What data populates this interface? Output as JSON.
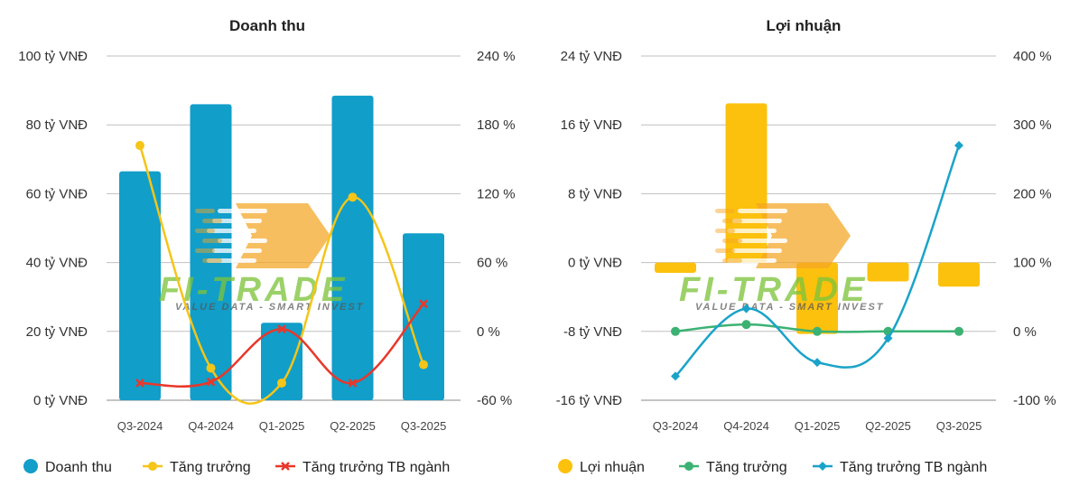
{
  "watermark": {
    "brand": "FI-TRADE",
    "tagline": "VALUE DATA - SMART INVEST",
    "brand_color": "#7dc43a",
    "arrow_color": "#f5a623"
  },
  "colors": {
    "revenue_bar": "#119ec9",
    "growth_left": "#f5c518",
    "industry_left": "#e8382a",
    "profit_bar": "#fcc10d",
    "growth_right": "#3bb273",
    "industry_right": "#1aa3c9",
    "grid": "#bfbfbf"
  },
  "chart_data": [
    {
      "type": "bar",
      "title": "Doanh thu",
      "categories": [
        "Q3-2024",
        "Q4-2024",
        "Q1-2025",
        "Q2-2025",
        "Q3-2025"
      ],
      "series": [
        {
          "name": "Doanh thu",
          "type": "bar",
          "axis": "left",
          "values": [
            66.5,
            86,
            22.5,
            88.5,
            48.5
          ]
        },
        {
          "name": "Tăng trưởng",
          "type": "line",
          "axis": "right",
          "values": [
            162,
            -32,
            -45,
            117,
            -29
          ]
        },
        {
          "name": "Tăng trưởng TB ngành",
          "type": "line",
          "axis": "right",
          "values": [
            -45,
            -44,
            2,
            -45,
            24
          ]
        }
      ],
      "left_axis": {
        "min": 0,
        "max": 100,
        "ticks": [
          0,
          20,
          40,
          60,
          80,
          100
        ],
        "tick_labels": [
          "0 tỷ VNĐ",
          "20 tỷ VNĐ",
          "40 tỷ VNĐ",
          "60 tỷ VNĐ",
          "80 tỷ VNĐ",
          "100 tỷ VNĐ"
        ]
      },
      "right_axis": {
        "min": -60,
        "max": 240,
        "ticks": [
          -60,
          0,
          60,
          120,
          180,
          240
        ],
        "tick_labels": [
          "-60 %",
          "0 %",
          "60 %",
          "120 %",
          "180 %",
          "240 %"
        ]
      },
      "grid": true,
      "legend_position": "bottom-left"
    },
    {
      "type": "bar",
      "title": "Lợi nhuận",
      "categories": [
        "Q3-2024",
        "Q4-2024",
        "Q1-2025",
        "Q2-2025",
        "Q3-2025"
      ],
      "series": [
        {
          "name": "Lợi nhuận",
          "type": "bar",
          "axis": "left",
          "values": [
            -1.2,
            18.5,
            -8.3,
            -2.2,
            -2.8
          ]
        },
        {
          "name": "Tăng trưởng",
          "type": "line",
          "axis": "right",
          "values": [
            0,
            10,
            0,
            0,
            0
          ]
        },
        {
          "name": "Tăng trưởng TB ngành",
          "type": "line",
          "axis": "right",
          "values": [
            -65,
            33,
            -45,
            -10,
            270
          ]
        }
      ],
      "left_axis": {
        "min": -16,
        "max": 24,
        "ticks": [
          -16,
          -8,
          0,
          8,
          16,
          24
        ],
        "tick_labels": [
          "-16 tỷ VNĐ",
          "-8 tỷ VNĐ",
          "0 tỷ VNĐ",
          "8 tỷ VNĐ",
          "16 tỷ VNĐ",
          "24 tỷ VNĐ"
        ]
      },
      "right_axis": {
        "min": -100,
        "max": 400,
        "ticks": [
          -100,
          0,
          100,
          200,
          300,
          400
        ],
        "tick_labels": [
          "-100 %",
          "0 %",
          "100 %",
          "200 %",
          "300 %",
          "400 %"
        ]
      },
      "grid": true,
      "legend_position": "bottom-left"
    }
  ]
}
